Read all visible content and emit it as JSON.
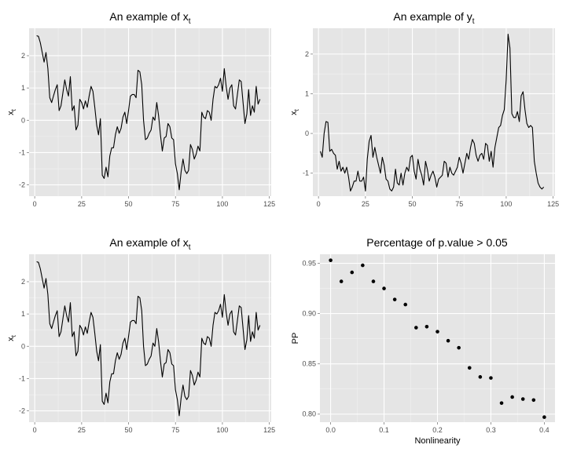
{
  "chart_data": [
    {
      "type": "line",
      "title": "An example of x",
      "title_subscript": "t",
      "ylabel": "x",
      "ylabel_subscript": "t",
      "xlabel": "",
      "xlim": [
        -3,
        126
      ],
      "ylim": [
        -2.35,
        2.85
      ],
      "xticks": [
        0,
        25,
        50,
        75,
        100,
        125
      ],
      "yticks": [
        -2,
        -1,
        0,
        1,
        2
      ],
      "grid": true,
      "series": [
        {
          "x": [
            1,
            2,
            3,
            4,
            5,
            6,
            7,
            8,
            9,
            10,
            11,
            12,
            13,
            14,
            15,
            16,
            17,
            18,
            19,
            20,
            21,
            22,
            23,
            24,
            25,
            26,
            27,
            28,
            29,
            30,
            31,
            32,
            33,
            34,
            35,
            36,
            37,
            38,
            39,
            40,
            41,
            42,
            43,
            44,
            45,
            46,
            47,
            48,
            49,
            50,
            51,
            52,
            53,
            54,
            55,
            56,
            57,
            58,
            59,
            60,
            61,
            62,
            63,
            64,
            65,
            66,
            67,
            68,
            69,
            70,
            71,
            72,
            73,
            74,
            75,
            76,
            77,
            78,
            79,
            80,
            81,
            82,
            83,
            84,
            85,
            86,
            87,
            88,
            89,
            90,
            91,
            92,
            93,
            94,
            95,
            96,
            97,
            98,
            99,
            100,
            101,
            102,
            103,
            104,
            105,
            106,
            107,
            108,
            109,
            110,
            111,
            112,
            113,
            114,
            115,
            116,
            117,
            118,
            119,
            120
          ],
          "y": [
            2.62,
            2.6,
            2.4,
            2.1,
            1.8,
            2.1,
            1.6,
            0.7,
            0.55,
            0.75,
            0.95,
            1.1,
            0.3,
            0.45,
            0.85,
            1.25,
            0.95,
            0.75,
            1.35,
            0.3,
            0.45,
            -0.3,
            -0.15,
            0.65,
            0.55,
            0.35,
            0.6,
            0.4,
            0.75,
            1.05,
            0.9,
            0.4,
            -0.15,
            -0.45,
            0.05,
            -1.7,
            -1.8,
            -1.45,
            -1.75,
            -1.1,
            -0.85,
            -0.85,
            -0.45,
            -0.2,
            -0.4,
            -0.25,
            0.1,
            0.25,
            -0.1,
            0.3,
            0.75,
            0.8,
            0.8,
            0.7,
            1.55,
            1.5,
            1.1,
            0.0,
            -0.6,
            -0.55,
            -0.4,
            -0.3,
            0.1,
            0.0,
            0.55,
            0.15,
            -0.45,
            -0.95,
            -0.55,
            -0.5,
            -0.1,
            -0.2,
            -0.55,
            -0.6,
            -1.35,
            -1.65,
            -2.15,
            -1.6,
            -1.2,
            -1.55,
            -1.65,
            -1.55,
            -0.75,
            -0.9,
            -1.2,
            -1.05,
            -0.8,
            -0.95,
            0.25,
            0.1,
            0.05,
            0.3,
            0.25,
            0.0,
            0.65,
            1.05,
            1.0,
            1.1,
            1.3,
            0.9,
            1.6,
            1.05,
            0.65,
            1.0,
            1.1,
            0.45,
            0.35,
            0.8,
            1.25,
            1.2,
            0.55,
            -0.1,
            0.2,
            0.95,
            0.15,
            0.45,
            0.25,
            1.05,
            0.5,
            0.65
          ]
        }
      ]
    },
    {
      "type": "line",
      "title": "An example of y",
      "title_subscript": "t",
      "ylabel": "x",
      "ylabel_subscript": "t",
      "xlabel": "",
      "xlim": [
        -3,
        126
      ],
      "ylim": [
        -1.58,
        2.65
      ],
      "xticks": [
        0,
        25,
        50,
        75,
        100,
        125
      ],
      "yticks": [
        -1,
        0,
        1,
        2
      ],
      "grid": true,
      "series": [
        {
          "x": [
            1,
            2,
            3,
            4,
            5,
            6,
            7,
            8,
            9,
            10,
            11,
            12,
            13,
            14,
            15,
            16,
            17,
            18,
            19,
            20,
            21,
            22,
            23,
            24,
            25,
            26,
            27,
            28,
            29,
            30,
            31,
            32,
            33,
            34,
            35,
            36,
            37,
            38,
            39,
            40,
            41,
            42,
            43,
            44,
            45,
            46,
            47,
            48,
            49,
            50,
            51,
            52,
            53,
            54,
            55,
            56,
            57,
            58,
            59,
            60,
            61,
            62,
            63,
            64,
            65,
            66,
            67,
            68,
            69,
            70,
            71,
            72,
            73,
            74,
            75,
            76,
            77,
            78,
            79,
            80,
            81,
            82,
            83,
            84,
            85,
            86,
            87,
            88,
            89,
            90,
            91,
            92,
            93,
            94,
            95,
            96,
            97,
            98,
            99,
            100,
            101,
            102,
            103,
            104,
            105,
            106,
            107,
            108,
            109,
            110,
            111,
            112,
            113,
            114,
            115,
            116,
            117,
            118,
            119,
            120
          ],
          "y": [
            -0.45,
            -0.6,
            0.0,
            0.3,
            0.28,
            -0.45,
            -0.4,
            -0.5,
            -0.55,
            -0.9,
            -0.7,
            -0.95,
            -0.85,
            -1.0,
            -0.85,
            -1.1,
            -1.45,
            -1.35,
            -1.2,
            -1.2,
            -0.95,
            -1.2,
            -1.2,
            -1.1,
            -1.45,
            -0.65,
            -0.2,
            -0.05,
            -0.6,
            -0.35,
            -0.6,
            -0.8,
            -1.0,
            -0.6,
            -0.8,
            -1.15,
            -1.2,
            -1.4,
            -1.45,
            -1.35,
            -0.9,
            -1.25,
            -1.3,
            -1.0,
            -1.3,
            -1.0,
            -0.85,
            -0.95,
            -0.6,
            -0.55,
            -0.95,
            -1.15,
            -0.65,
            -0.9,
            -1.05,
            -1.3,
            -0.7,
            -0.9,
            -1.2,
            -1.05,
            -0.95,
            -1.1,
            -1.35,
            -1.15,
            -1.1,
            -1.05,
            -0.7,
            -0.75,
            -1.1,
            -0.85,
            -1.0,
            -1.05,
            -0.95,
            -0.85,
            -0.6,
            -0.75,
            -1.0,
            -0.75,
            -0.5,
            -0.65,
            -0.35,
            -0.15,
            -0.25,
            -0.55,
            -0.7,
            -0.55,
            -0.5,
            -0.65,
            -0.25,
            -0.3,
            -0.7,
            -0.45,
            -0.85,
            -0.35,
            -0.1,
            0.15,
            0.2,
            0.45,
            0.6,
            1.35,
            2.5,
            2.15,
            0.5,
            0.4,
            0.4,
            0.55,
            0.3,
            0.95,
            1.05,
            0.6,
            0.25,
            0.15,
            0.2,
            0.15,
            -0.7,
            -1.0,
            -1.25,
            -1.35,
            -1.4,
            -1.35
          ]
        }
      ]
    },
    {
      "type": "line",
      "title": "An example of x",
      "title_subscript": "t",
      "ylabel": "x",
      "ylabel_subscript": "t",
      "xlabel": "",
      "xlim": [
        -3,
        126
      ],
      "ylim": [
        -2.35,
        2.85
      ],
      "xticks": [
        0,
        25,
        50,
        75,
        100,
        125
      ],
      "yticks": [
        -2,
        -1,
        0,
        1,
        2
      ],
      "grid": true,
      "series": [
        {
          "x": [
            1,
            2,
            3,
            4,
            5,
            6,
            7,
            8,
            9,
            10,
            11,
            12,
            13,
            14,
            15,
            16,
            17,
            18,
            19,
            20,
            21,
            22,
            23,
            24,
            25,
            26,
            27,
            28,
            29,
            30,
            31,
            32,
            33,
            34,
            35,
            36,
            37,
            38,
            39,
            40,
            41,
            42,
            43,
            44,
            45,
            46,
            47,
            48,
            49,
            50,
            51,
            52,
            53,
            54,
            55,
            56,
            57,
            58,
            59,
            60,
            61,
            62,
            63,
            64,
            65,
            66,
            67,
            68,
            69,
            70,
            71,
            72,
            73,
            74,
            75,
            76,
            77,
            78,
            79,
            80,
            81,
            82,
            83,
            84,
            85,
            86,
            87,
            88,
            89,
            90,
            91,
            92,
            93,
            94,
            95,
            96,
            97,
            98,
            99,
            100,
            101,
            102,
            103,
            104,
            105,
            106,
            107,
            108,
            109,
            110,
            111,
            112,
            113,
            114,
            115,
            116,
            117,
            118,
            119,
            120
          ],
          "y": [
            2.62,
            2.6,
            2.4,
            2.1,
            1.8,
            2.1,
            1.6,
            0.7,
            0.55,
            0.75,
            0.95,
            1.1,
            0.3,
            0.45,
            0.85,
            1.25,
            0.95,
            0.75,
            1.35,
            0.3,
            0.45,
            -0.3,
            -0.15,
            0.65,
            0.55,
            0.35,
            0.6,
            0.4,
            0.75,
            1.05,
            0.9,
            0.4,
            -0.15,
            -0.45,
            0.05,
            -1.7,
            -1.8,
            -1.45,
            -1.75,
            -1.1,
            -0.85,
            -0.85,
            -0.45,
            -0.2,
            -0.4,
            -0.25,
            0.1,
            0.25,
            -0.1,
            0.3,
            0.75,
            0.8,
            0.8,
            0.7,
            1.55,
            1.5,
            1.1,
            0.0,
            -0.6,
            -0.55,
            -0.4,
            -0.3,
            0.1,
            0.0,
            0.55,
            0.15,
            -0.45,
            -0.95,
            -0.55,
            -0.5,
            -0.1,
            -0.2,
            -0.55,
            -0.6,
            -1.35,
            -1.65,
            -2.15,
            -1.6,
            -1.2,
            -1.55,
            -1.65,
            -1.55,
            -0.75,
            -0.9,
            -1.2,
            -1.05,
            -0.8,
            -0.95,
            0.25,
            0.1,
            0.05,
            0.3,
            0.25,
            0.0,
            0.65,
            1.05,
            1.0,
            1.1,
            1.3,
            0.9,
            1.6,
            1.05,
            0.65,
            1.0,
            1.1,
            0.45,
            0.35,
            0.8,
            1.25,
            1.2,
            0.55,
            -0.1,
            0.2,
            0.95,
            0.15,
            0.45,
            0.25,
            1.05,
            0.5,
            0.65
          ]
        }
      ]
    },
    {
      "type": "scatter",
      "title": "Percentage of p.value > 0.05",
      "title_subscript": "",
      "xlabel": "Nonlinearity",
      "ylabel": "PP",
      "ylabel_subscript": "",
      "xlim": [
        -0.02,
        0.42
      ],
      "ylim": [
        0.792,
        0.959
      ],
      "xticks": [
        0.0,
        0.1,
        0.2,
        0.3,
        0.4
      ],
      "yticks": [
        0.8,
        0.85,
        0.9,
        0.95
      ],
      "tick_labels_x": [
        "0.0",
        "0.1",
        "0.2",
        "0.3",
        "0.4"
      ],
      "tick_labels_y": [
        "0.80",
        "0.85",
        "0.90",
        "0.95"
      ],
      "grid": true,
      "series": [
        {
          "x": [
            0.0,
            0.02,
            0.04,
            0.06,
            0.08,
            0.1,
            0.12,
            0.14,
            0.16,
            0.18,
            0.2,
            0.22,
            0.24,
            0.26,
            0.28,
            0.3,
            0.32,
            0.34,
            0.36,
            0.38,
            0.4
          ],
          "y": [
            0.953,
            0.932,
            0.941,
            0.948,
            0.932,
            0.925,
            0.914,
            0.909,
            0.886,
            0.887,
            0.882,
            0.873,
            0.866,
            0.846,
            0.837,
            0.836,
            0.811,
            0.817,
            0.815,
            0.814,
            0.797
          ]
        }
      ]
    }
  ],
  "colors": {
    "panel_bg": "#e5e5e5",
    "grid_major": "#ffffff",
    "grid_minor": "#f2f2f2",
    "tick_text": "#4d4d4d",
    "mark": "#000000"
  }
}
